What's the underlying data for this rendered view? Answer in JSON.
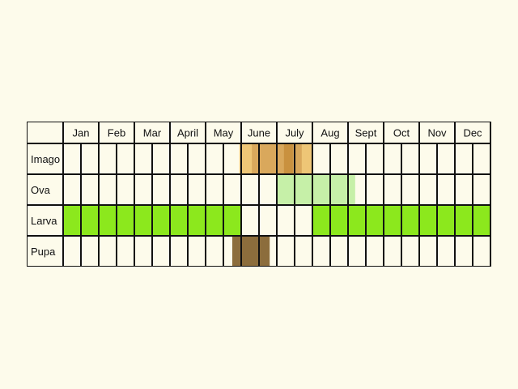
{
  "title": "",
  "months": [
    "Jan",
    "Feb",
    "Mar",
    "April",
    "May",
    "June",
    "July",
    "Aug",
    "Sept",
    "Oct",
    "Nov",
    "Dec"
  ],
  "stages": [
    {
      "key": "imago",
      "label": "Imago",
      "bands": [
        {
          "start_half": 9.9,
          "end_half": 14.0,
          "color": "#eec676"
        },
        {
          "start_half": 10.6,
          "end_half": 13.4,
          "color": "#d9a85c"
        },
        {
          "start_half": 12.4,
          "end_half": 12.9,
          "color": "#c9913f"
        }
      ]
    },
    {
      "key": "ova",
      "label": "Ova",
      "bands": [
        {
          "start_half": 12.0,
          "end_half": 16.4,
          "color": "#c6f0a8"
        }
      ]
    },
    {
      "key": "larva",
      "label": "Larva",
      "bands": [
        {
          "start_half": 0.0,
          "end_half": 10.0,
          "color": "#8ce81d"
        },
        {
          "start_half": 14.0,
          "end_half": 24.0,
          "color": "#8ce81d"
        }
      ]
    },
    {
      "key": "pupa",
      "label": "Pupa",
      "bands": [
        {
          "start_half": 9.5,
          "end_half": 11.6,
          "color": "#8c6d3c"
        }
      ]
    }
  ],
  "colors": {
    "background": "#fdfbeb",
    "grid": "#111111",
    "cell": "#fdfbeb"
  }
}
